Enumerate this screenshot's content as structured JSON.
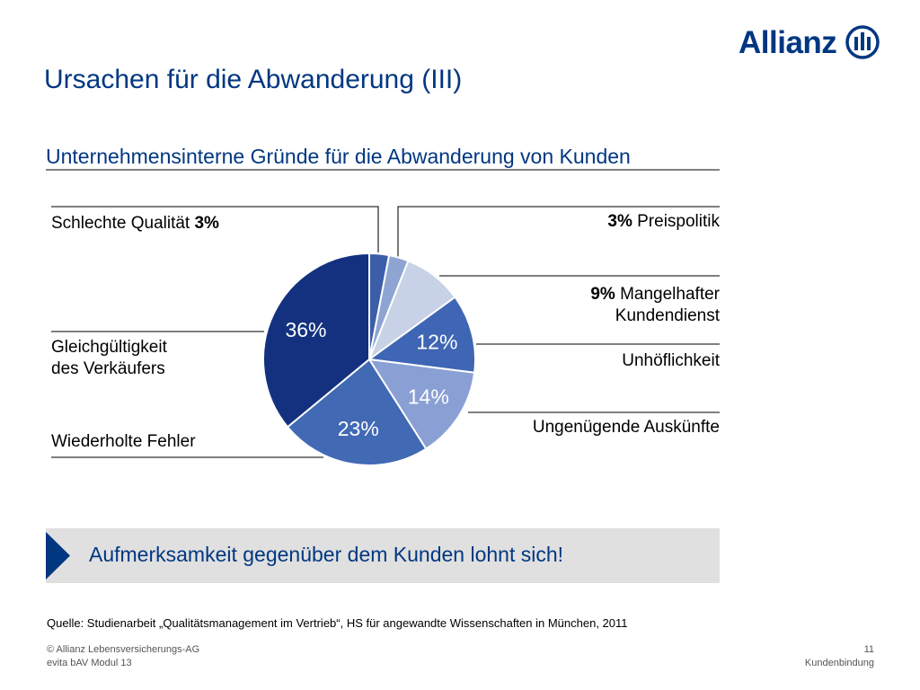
{
  "brand": {
    "name": "Allianz",
    "color": "#003781"
  },
  "slide": {
    "title": "Ursachen für die Abwanderung (III)",
    "subtitle": "Unternehmensinterne Gründe für die Abwanderung von Kunden"
  },
  "labels": {
    "schlechte_text": "Schlechte Qualität ",
    "schlechte_pct": "3%",
    "preis_pct": "3%",
    "preis_text": " Preispolitik",
    "mangel_pct": "9%",
    "mangel_text1": " Mangelhafter",
    "mangel_text2": "Kundendienst",
    "unhoeflich": "Unhöflichkeit",
    "ungenuegend": "Ungenügende Auskünfte",
    "wiederholt": "Wiederholte Fehler",
    "gleich1": "Gleichgültigkeit",
    "gleich2": "des Verkäufers"
  },
  "callout": {
    "text": "Aufmerksamkeit gegenüber dem Kunden lohnt sich!"
  },
  "source": "Quelle: Studienarbeit „Qualitätsmanagement im Vertrieb“, HS für angewandte Wissenschaften in München, 2011",
  "footer": {
    "left_line1": "© Allianz Lebensversicherungs-AG",
    "left_line2": "evita bAV Modul 13",
    "page_number": "11",
    "section": "Kundenbindung"
  },
  "chart_data": {
    "type": "pie",
    "title": "Unternehmensinterne Gründe für die Abwanderung von Kunden",
    "slices": [
      {
        "label": "Schlechte Qualität",
        "value": 3,
        "display": "",
        "color": "#3b5ea8"
      },
      {
        "label": "Preispolitik",
        "value": 3,
        "display": "",
        "color": "#8ea4d2"
      },
      {
        "label": "Mangelhafter Kundendienst",
        "value": 9,
        "display": "",
        "color": "#c8d2e6"
      },
      {
        "label": "Unhöflichkeit",
        "value": 12,
        "display": "12%",
        "color": "#3f66b4"
      },
      {
        "label": "Ungenügende Auskünfte",
        "value": 14,
        "display": "14%",
        "color": "#8aa0d4"
      },
      {
        "label": "Wiederholte Fehler",
        "value": 23,
        "display": "23%",
        "color": "#4169b4"
      },
      {
        "label": "Gleichgültigkeit des Verkäufers",
        "value": 36,
        "display": "36%",
        "color": "#13317f"
      }
    ]
  }
}
